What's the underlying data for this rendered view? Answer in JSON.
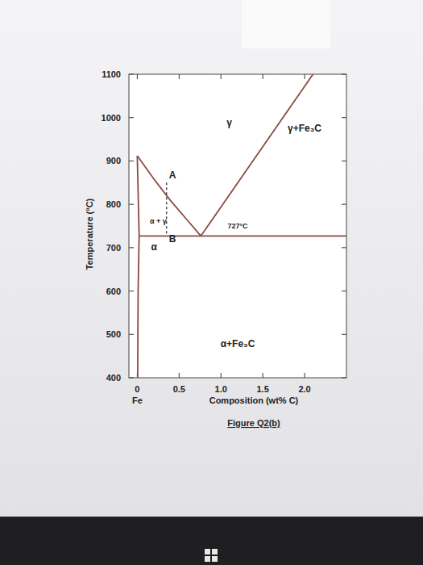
{
  "chart_data": {
    "type": "line",
    "x_label": "Composition (wt% C)",
    "y_label": "Temperature (°C)",
    "x_origin_label": "Fe",
    "caption": "Figure Q2(b)",
    "xlim": [
      -0.1,
      2.5
    ],
    "ylim": [
      400,
      1100
    ],
    "xticks": [
      0,
      0.5,
      {
        "value": 1,
        "label": "1.0"
      },
      1.5,
      {
        "value": 2,
        "label": "2.0"
      }
    ],
    "yticks": [
      400,
      500,
      600,
      700,
      800,
      900,
      1000,
      1100
    ],
    "grid": false,
    "color": "#8b4a42",
    "series": [
      {
        "x": [
          0,
          0.2,
          0.4,
          0.6,
          0.76
        ],
        "values": [
          912,
          858,
          808,
          763,
          727
        ],
        "color": "#8b4a42",
        "line_style": "solid"
      },
      {
        "x": [
          0,
          0.022
        ],
        "values": [
          912,
          727
        ],
        "color": "#8b4a42",
        "line_style": "solid"
      },
      {
        "x": [
          0.022,
          0.01,
          0.005
        ],
        "values": [
          727,
          600,
          400
        ],
        "color": "#8b4a42",
        "line_style": "solid"
      },
      {
        "x": [
          0.022,
          2.5
        ],
        "values": [
          727,
          727
        ],
        "color": "#8b4a42",
        "line_style": "solid"
      },
      {
        "x": [
          0.76,
          2.1
        ],
        "values": [
          727,
          1100
        ],
        "color": "#8b4a42",
        "line_style": "solid"
      },
      {
        "x": [
          0.35,
          0.35
        ],
        "values": [
          850,
          727
        ],
        "color": "#222222",
        "line_style": "dashed"
      }
    ],
    "annotations": [
      {
        "text": "γ",
        "x": 1.1,
        "y": 980
      },
      {
        "text": "γ+Fe₃C",
        "x": 2.0,
        "y": 968
      },
      {
        "text": "α+Fe₃C",
        "x": 1.2,
        "y": 470
      },
      {
        "text": "α",
        "x": 0.2,
        "y": 695
      },
      {
        "text": "α + γ",
        "x": 0.25,
        "y": 755
      },
      {
        "text": "727°C",
        "x": 1.2,
        "y": 745
      },
      {
        "text": "A",
        "x": 0.42,
        "y": 860
      },
      {
        "text": "B",
        "x": 0.42,
        "y": 712
      }
    ]
  }
}
